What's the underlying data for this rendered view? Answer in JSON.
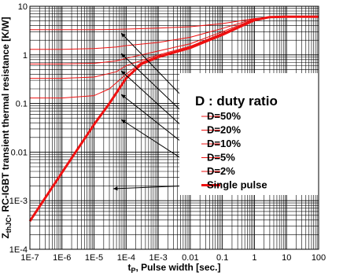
{
  "chart_data": {
    "type": "line",
    "xlabel": {
      "main": "t",
      "sub": "P",
      "rest": ", Pulse width [sec.]"
    },
    "ylabel": {
      "main": "Z",
      "sub": "thJC",
      "rest": ", RC-IGBT transient thermal resistance [K/W]"
    },
    "x_scale": "log",
    "y_scale": "log",
    "xlim": [
      1e-07,
      100
    ],
    "ylim": [
      0.0001,
      10
    ],
    "grid": true,
    "x_ticks": [
      {
        "v": 1e-07,
        "label": "1E-7"
      },
      {
        "v": 1e-06,
        "label": "1E-6"
      },
      {
        "v": 1e-05,
        "label": "1E-5"
      },
      {
        "v": 0.0001,
        "label": "1E-4"
      },
      {
        "v": 0.001,
        "label": "1E-3"
      },
      {
        "v": 0.01,
        "label": "0.01"
      },
      {
        "v": 0.1,
        "label": "0.1"
      },
      {
        "v": 1,
        "label": "1"
      },
      {
        "v": 10,
        "label": "10"
      },
      {
        "v": 100,
        "label": "100"
      }
    ],
    "y_ticks": [
      {
        "v": 0.0001,
        "label": "1E-4"
      },
      {
        "v": 0.001,
        "label": "1E-3"
      },
      {
        "v": 0.01,
        "label": "0.01"
      },
      {
        "v": 0.1,
        "label": "0.1"
      },
      {
        "v": 1,
        "label": "1"
      },
      {
        "v": 10,
        "label": "10"
      }
    ],
    "legend": {
      "title": "D : duty ratio",
      "placement": "right"
    },
    "series": [
      {
        "name": "D=50%",
        "line_width": 1,
        "x": [
          1e-07,
          1e-06,
          1e-05,
          5e-05,
          0.0001,
          0.001,
          0.01,
          0.1,
          1,
          3,
          10,
          100
        ],
        "y": [
          3.3,
          3.3,
          3.3,
          3.35,
          3.4,
          3.55,
          3.8,
          4.4,
          5.6,
          6.0,
          6.1,
          6.1
        ]
      },
      {
        "name": "D=20%",
        "line_width": 1,
        "x": [
          1e-07,
          1e-06,
          1e-05,
          5e-05,
          0.0001,
          0.001,
          0.01,
          0.1,
          1,
          3,
          10,
          100
        ],
        "y": [
          1.3,
          1.3,
          1.35,
          1.45,
          1.55,
          1.8,
          2.3,
          3.5,
          5.5,
          6.0,
          6.1,
          6.1
        ]
      },
      {
        "name": "D=10%",
        "line_width": 1,
        "x": [
          1e-07,
          1e-06,
          1e-05,
          5e-05,
          0.0001,
          0.001,
          0.01,
          0.1,
          1,
          3,
          10,
          100
        ],
        "y": [
          0.65,
          0.65,
          0.67,
          0.75,
          0.85,
          1.2,
          1.7,
          3.0,
          5.4,
          6.0,
          6.1,
          6.1
        ]
      },
      {
        "name": "D=5%",
        "line_width": 1,
        "x": [
          1e-07,
          1e-06,
          1e-05,
          5e-05,
          0.0001,
          0.001,
          0.01,
          0.1,
          1,
          3,
          10,
          100
        ],
        "y": [
          0.33,
          0.33,
          0.35,
          0.45,
          0.6,
          1.0,
          1.5,
          2.8,
          5.3,
          6.0,
          6.1,
          6.1
        ]
      },
      {
        "name": "D=2%",
        "line_width": 1,
        "x": [
          1e-07,
          1e-06,
          1e-05,
          3e-05,
          0.0001,
          0.0003,
          0.001,
          0.01,
          0.1,
          1,
          3,
          10,
          100
        ],
        "y": [
          0.13,
          0.13,
          0.145,
          0.2,
          0.4,
          0.7,
          0.95,
          1.45,
          2.7,
          5.3,
          6.0,
          6.1,
          6.1
        ]
      },
      {
        "name": "Single pulse",
        "line_width": 3,
        "x": [
          1e-07,
          1e-06,
          1e-05,
          3e-05,
          0.0001,
          0.0003,
          0.001,
          0.01,
          0.1,
          1,
          3,
          10,
          100
        ],
        "y": [
          0.00038,
          0.0038,
          0.037,
          0.1,
          0.33,
          0.65,
          0.9,
          1.4,
          2.6,
          5.2,
          6.0,
          6.1,
          6.1
        ]
      }
    ]
  }
}
